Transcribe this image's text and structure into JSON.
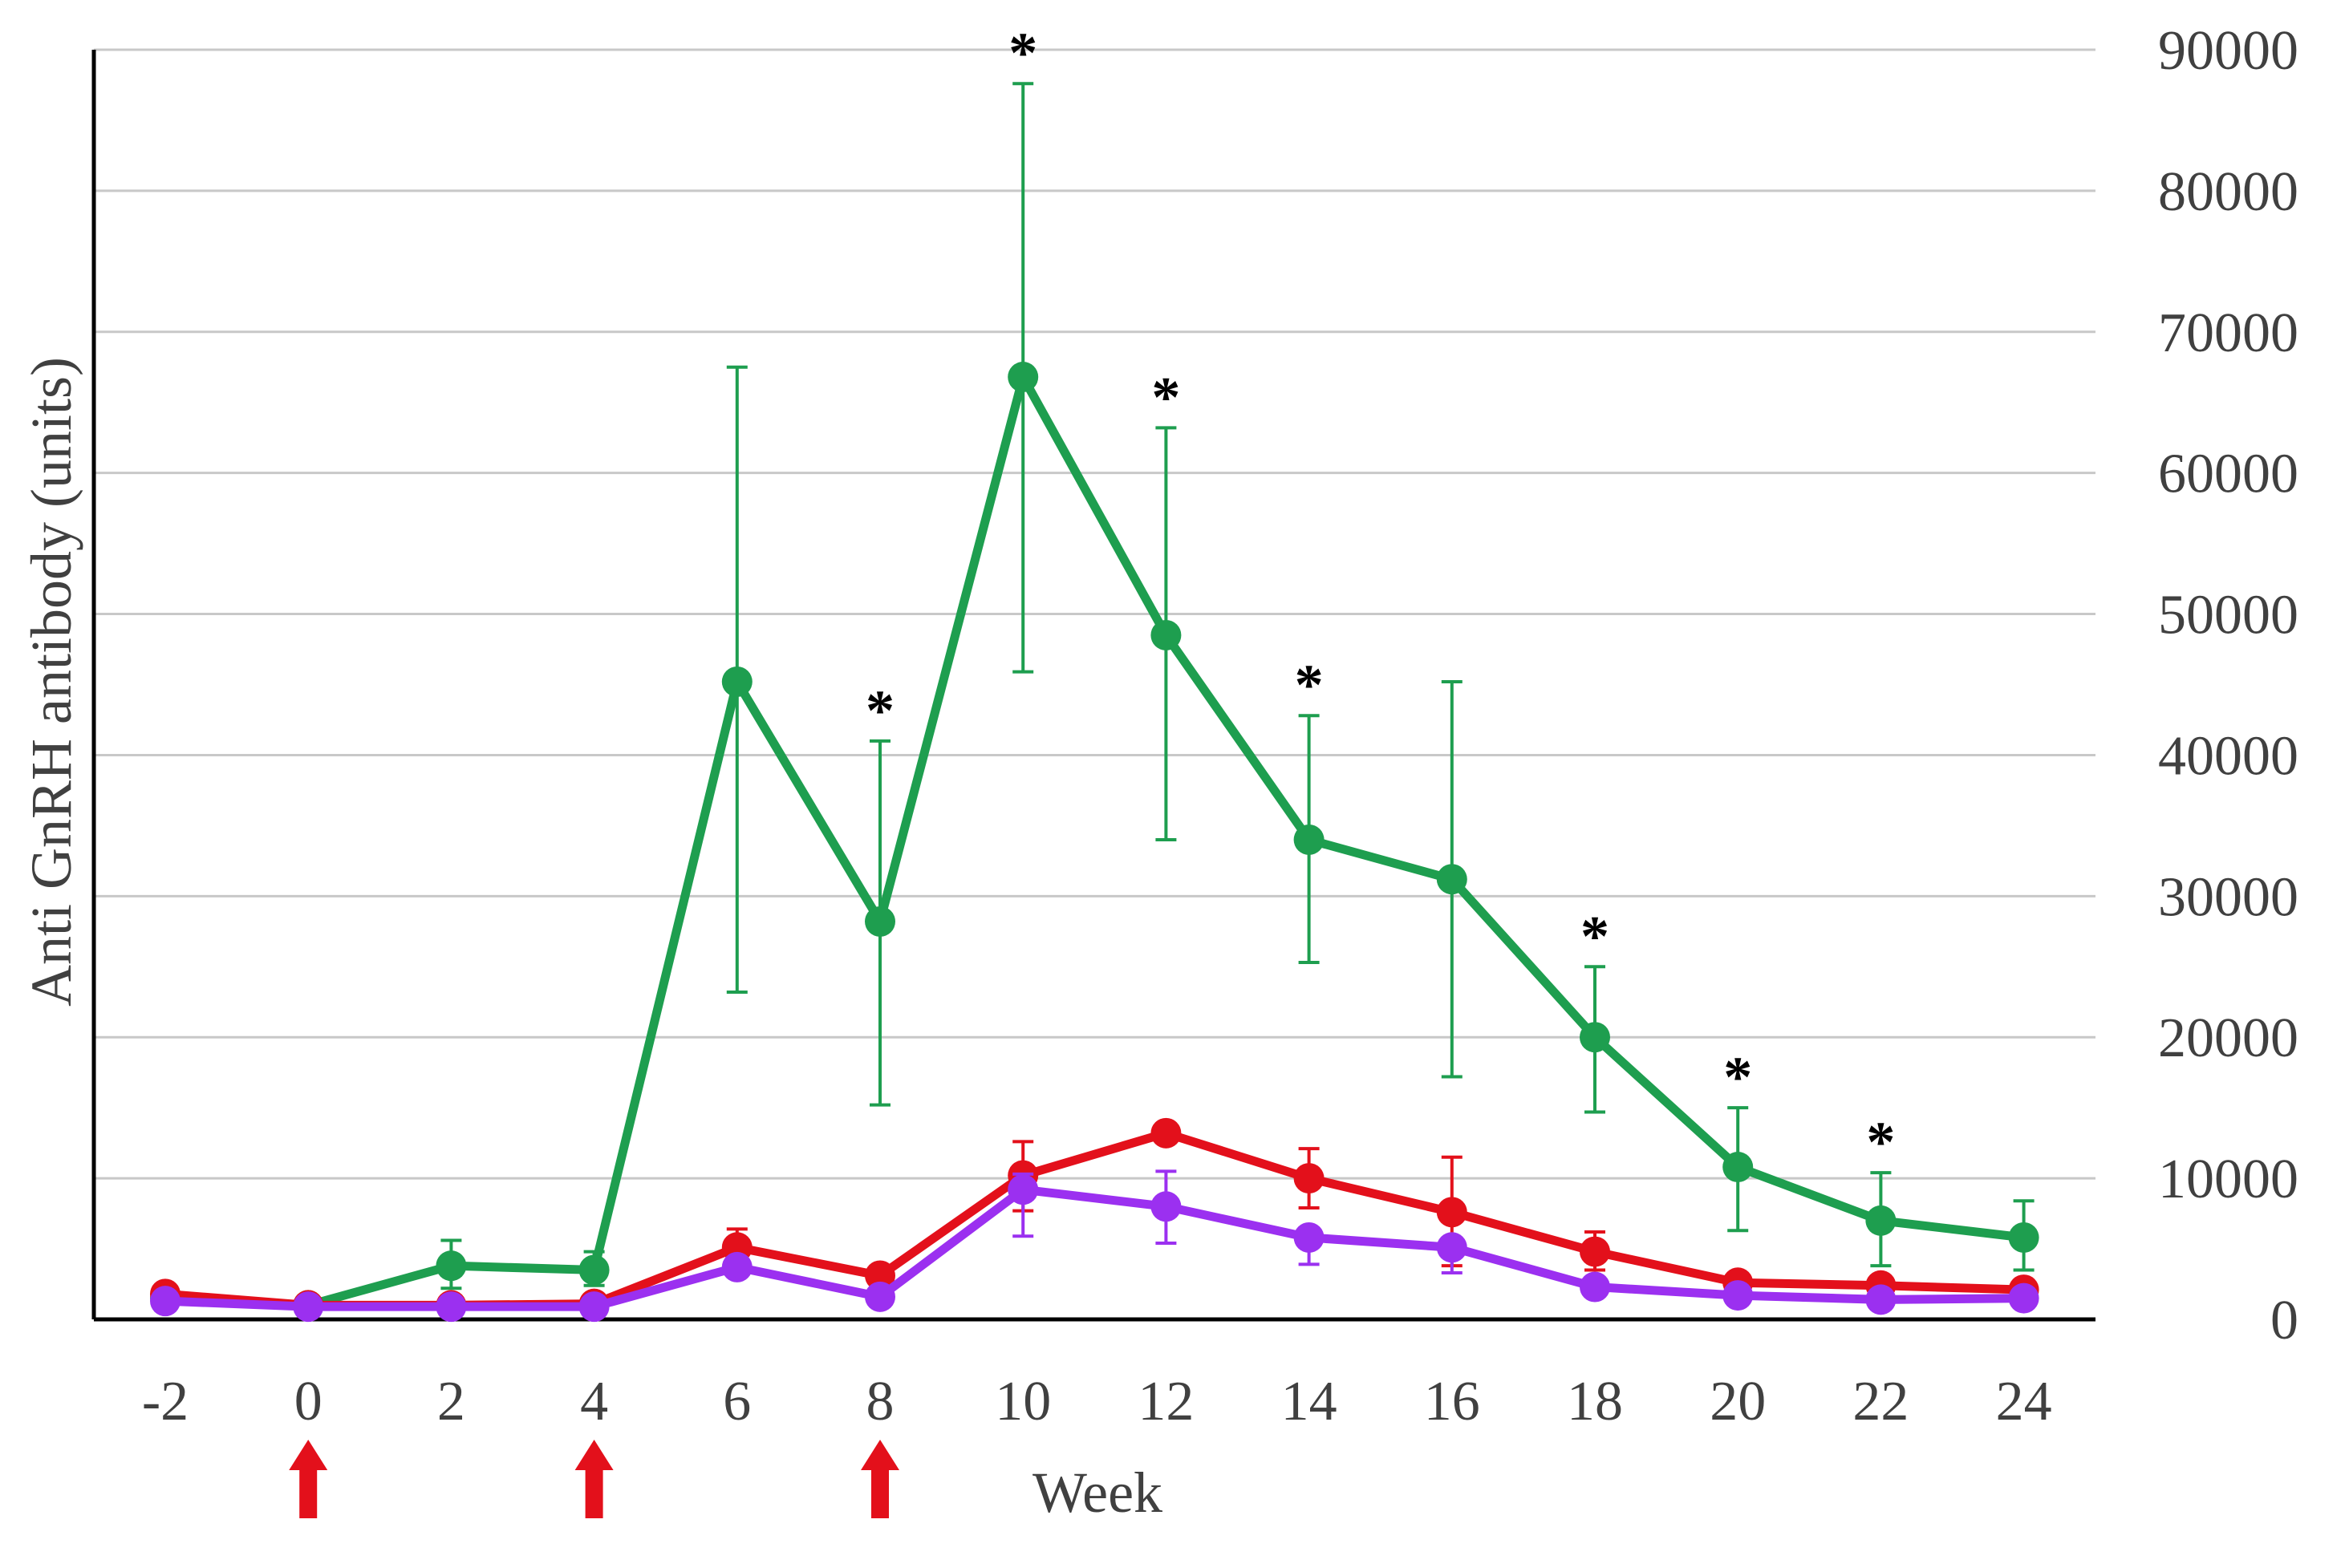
{
  "chart_data": {
    "type": "line",
    "title": "",
    "xlabel": "Week",
    "ylabel": "Anti GnRH antibody (units)",
    "x": [
      -2,
      0,
      2,
      4,
      6,
      8,
      10,
      12,
      14,
      16,
      18,
      20,
      22,
      24
    ],
    "x_tick_labels": [
      "-2",
      "0",
      "2",
      "4",
      "6",
      "8",
      "10",
      "12",
      "14",
      "16",
      "18",
      "20",
      "22",
      "24"
    ],
    "ylim": [
      0,
      90000
    ],
    "y_ticks": [
      0,
      10000,
      20000,
      30000,
      40000,
      50000,
      60000,
      70000,
      80000,
      90000
    ],
    "y_tick_labels": [
      "0",
      "10000",
      "20000",
      "30000",
      "40000",
      "50000",
      "60000",
      "70000",
      "80000",
      "90000"
    ],
    "y_axis_side": "right",
    "grid": true,
    "series": [
      {
        "color": "#1e9e4f",
        "values": [
          1500,
          1000,
          3800,
          3500,
          45200,
          28200,
          66800,
          48500,
          34000,
          31200,
          20000,
          10800,
          7000,
          5800
        ],
        "err_upper": [
          null,
          null,
          5600,
          4800,
          67500,
          41000,
          87600,
          63200,
          42800,
          45200,
          25000,
          15000,
          10400,
          8400
        ],
        "err_lower": [
          null,
          null,
          2200,
          2400,
          23200,
          15200,
          45900,
          34000,
          25300,
          17200,
          14700,
          6300,
          3800,
          3500
        ]
      },
      {
        "color": "#e3101b",
        "values": [
          1800,
          1000,
          1000,
          1100,
          5100,
          3100,
          10200,
          13200,
          10000,
          7600,
          4800,
          2600,
          2400,
          2100
        ],
        "err_upper": [
          null,
          null,
          null,
          null,
          6400,
          null,
          12600,
          null,
          12100,
          11500,
          6200,
          null,
          null,
          null
        ],
        "err_lower": [
          null,
          null,
          null,
          null,
          3700,
          null,
          7700,
          null,
          7900,
          3800,
          3500,
          null,
          null,
          null
        ]
      },
      {
        "color": "#9b30f0",
        "values": [
          1300,
          900,
          900,
          900,
          3700,
          1600,
          9200,
          8000,
          5800,
          5100,
          2300,
          1700,
          1400,
          1500
        ],
        "err_upper": [
          null,
          null,
          null,
          null,
          null,
          null,
          10300,
          10500,
          null,
          null,
          null,
          null,
          null,
          null
        ],
        "err_lower": [
          null,
          null,
          null,
          null,
          null,
          null,
          5900,
          5400,
          3900,
          3300,
          null,
          null,
          null,
          null
        ]
      }
    ],
    "significance_marker": "*",
    "significance_weeks": [
      8,
      10,
      12,
      14,
      18,
      20,
      22
    ],
    "booster_marker_weeks": [
      0,
      4,
      8
    ],
    "booster_marker_color": "#e3101b"
  }
}
